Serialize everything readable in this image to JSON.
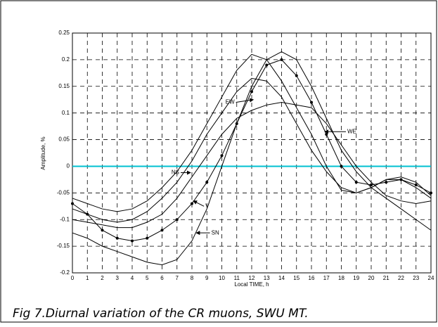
{
  "chart_data": {
    "type": "line",
    "caption": "Fig 7.Diurnal variation of the CR muons, SWU MT.",
    "xlabel": "Local TIME, h",
    "ylabel": "Amplitude, %",
    "x": [
      0,
      1,
      2,
      3,
      4,
      5,
      6,
      7,
      8,
      9,
      10,
      11,
      12,
      13,
      14,
      15,
      16,
      17,
      18,
      19,
      20,
      21,
      22,
      23,
      24
    ],
    "series": [
      {
        "name": "EW",
        "color": "#000000",
        "values": [
          -0.06,
          -0.07,
          -0.08,
          -0.085,
          -0.08,
          -0.065,
          -0.04,
          -0.01,
          0.03,
          0.08,
          0.13,
          0.18,
          0.21,
          0.2,
          0.16,
          0.11,
          0.06,
          0.0,
          -0.045,
          -0.05,
          -0.04,
          -0.025,
          -0.025,
          -0.04,
          -0.06
        ]
      },
      {
        "name": "WE",
        "color": "#000000",
        "values": [
          -0.1,
          -0.105,
          -0.11,
          -0.115,
          -0.115,
          -0.105,
          -0.09,
          -0.06,
          -0.02,
          0.02,
          0.06,
          0.09,
          0.105,
          0.115,
          0.12,
          0.115,
          0.11,
          0.08,
          0.04,
          0.0,
          -0.03,
          -0.055,
          -0.065,
          -0.07,
          -0.065
        ]
      },
      {
        "name": "NS",
        "color": "#000000",
        "values": [
          -0.08,
          -0.09,
          -0.1,
          -0.105,
          -0.1,
          -0.085,
          -0.06,
          -0.03,
          0.01,
          0.06,
          0.1,
          0.14,
          0.165,
          0.16,
          0.13,
          0.08,
          0.03,
          -0.01,
          -0.04,
          -0.05,
          -0.04,
          -0.025,
          -0.02,
          -0.03,
          -0.055
        ]
      },
      {
        "name": "V",
        "color": "#000000",
        "marker": true,
        "values": [
          -0.07,
          -0.09,
          -0.12,
          -0.135,
          -0.14,
          -0.135,
          -0.12,
          -0.1,
          -0.07,
          -0.03,
          0.02,
          0.08,
          0.14,
          0.19,
          0.2,
          0.17,
          0.12,
          0.06,
          0.0,
          -0.03,
          -0.035,
          -0.03,
          -0.025,
          -0.035,
          -0.05
        ]
      },
      {
        "name": "SN",
        "color": "#000000",
        "values": [
          -0.125,
          -0.135,
          -0.15,
          -0.16,
          -0.17,
          -0.18,
          -0.185,
          -0.175,
          -0.14,
          -0.08,
          0.0,
          0.08,
          0.15,
          0.2,
          0.215,
          0.2,
          0.15,
          0.09,
          0.03,
          -0.01,
          -0.04,
          -0.06,
          -0.08,
          -0.1,
          -0.12
        ]
      }
    ],
    "xlim": [
      0,
      24
    ],
    "xticks": [
      0,
      1,
      2,
      3,
      4,
      5,
      6,
      7,
      8,
      9,
      10,
      11,
      12,
      13,
      14,
      15,
      16,
      17,
      18,
      19,
      20,
      21,
      22,
      23,
      24
    ],
    "ylim": [
      -0.2,
      0.25
    ],
    "yticks": [
      -0.2,
      -0.15,
      -0.1,
      -0.05,
      0,
      0.05,
      0.1,
      0.15,
      0.2,
      0.25
    ],
    "grid": true,
    "zero_line_color": "#00c0d0"
  }
}
